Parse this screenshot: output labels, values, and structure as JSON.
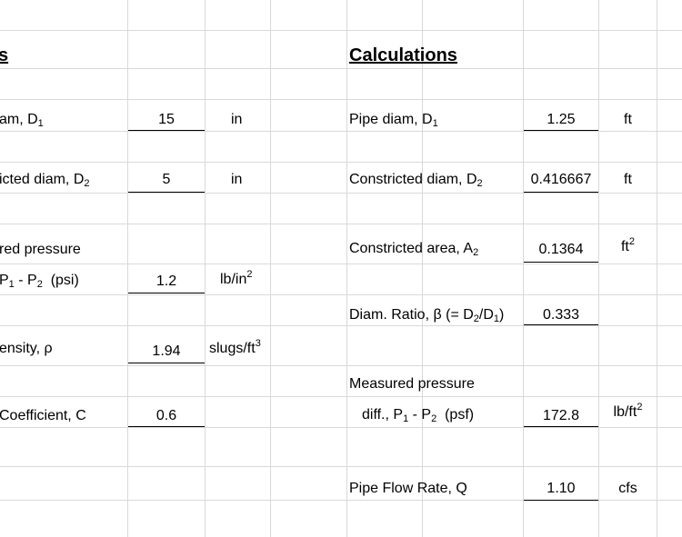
{
  "left": {
    "heading_fragment": "s",
    "rows": {
      "pipe_diam": {
        "label_pre": "am, D",
        "label_sub": "1",
        "value": "15",
        "unit": "in"
      },
      "constricted_diam": {
        "label_pre": "icted diam, D",
        "label_sub": "2",
        "value": "5",
        "unit": "in"
      },
      "measured_pressure_line1": {
        "label": "red pressure"
      },
      "measured_pressure_line2": {
        "label_a": "P",
        "sub_a": "1",
        "label_b": " - P",
        "sub_b": "2",
        "label_c": "  (psi)",
        "value": "1.2",
        "unit_base": "lb/in",
        "unit_sup": "2"
      },
      "density": {
        "label": "ensity, ρ",
        "value": "1.94",
        "unit_base": "slugs/ft",
        "unit_sup": "3"
      },
      "coefficient": {
        "label": "Coefficient, C",
        "value": "0.6"
      }
    }
  },
  "right": {
    "heading": "Calculations",
    "rows": {
      "pipe_diam": {
        "label_pre": "Pipe diam, D",
        "label_sub": "1",
        "value": "1.25",
        "unit": "ft"
      },
      "constricted_diam": {
        "label_pre": "Constricted diam, D",
        "label_sub": "2",
        "value": "0.416667",
        "unit": "ft"
      },
      "constricted_area": {
        "label_pre": "Constricted area, A",
        "label_sub": "2",
        "value": "0.1364",
        "unit_base": "ft",
        "unit_sup": "2"
      },
      "diam_ratio": {
        "label_a": "Diam. Ratio, β (= D",
        "sub_a": "2",
        "label_b": "/D",
        "sub_b": "1",
        "label_c": ")",
        "value": "0.333"
      },
      "measured_pressure_line1": {
        "label": "Measured pressure"
      },
      "measured_pressure_line2": {
        "label_a": "diff., P",
        "sub_a": "1",
        "label_b": " - P",
        "sub_b": "2",
        "label_c": "  (psf)",
        "value": "172.8",
        "unit_base": "lb/ft",
        "unit_sup": "2"
      },
      "flow_rate": {
        "label": "Pipe Flow Rate, Q",
        "value": "1.10",
        "unit": "cfs"
      }
    }
  }
}
